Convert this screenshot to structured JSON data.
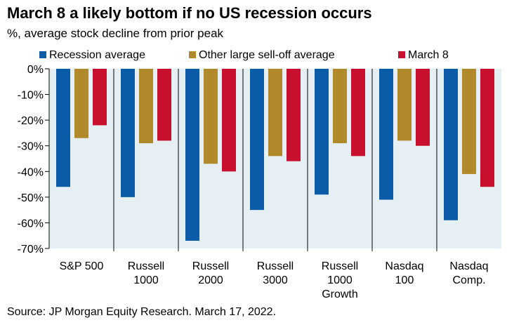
{
  "chart_data": {
    "type": "bar",
    "title": "March 8 a likely bottom if no US recession occurs",
    "subtitle": "%, average stock decline from prior peak",
    "source": "Source: JP Morgan Equity Research. March 17, 2022.",
    "categories": [
      [
        "S&P 500"
      ],
      [
        "Russell",
        "1000"
      ],
      [
        "Russell",
        "2000"
      ],
      [
        "Russell",
        "3000"
      ],
      [
        "Russell",
        "1000",
        "Growth"
      ],
      [
        "Nasdaq",
        "100"
      ],
      [
        "Nasdaq",
        "Comp."
      ]
    ],
    "series": [
      {
        "name": "Recession average",
        "color": "#0a5ca8",
        "values": [
          -46,
          -50,
          -67,
          -55,
          -49,
          -51,
          -59
        ]
      },
      {
        "name": "Other large sell-off average",
        "color": "#b08a2a",
        "values": [
          -27,
          -29,
          -37,
          -34,
          -29,
          -28,
          -41
        ]
      },
      {
        "name": "March 8",
        "color": "#c8102e",
        "values": [
          -22,
          -28,
          -40,
          -36,
          -34,
          -30,
          -46
        ]
      }
    ],
    "ylim": [
      -70,
      0
    ],
    "yticks": [
      0,
      -10,
      -20,
      -30,
      -40,
      -50,
      -60,
      -70
    ],
    "ytick_labels": [
      "0%",
      "-10%",
      "-20%",
      "-30%",
      "-40%",
      "-50%",
      "-60%",
      "-70%"
    ],
    "legend_position": "top",
    "grid": false,
    "plot_background": "#e6eff4"
  }
}
